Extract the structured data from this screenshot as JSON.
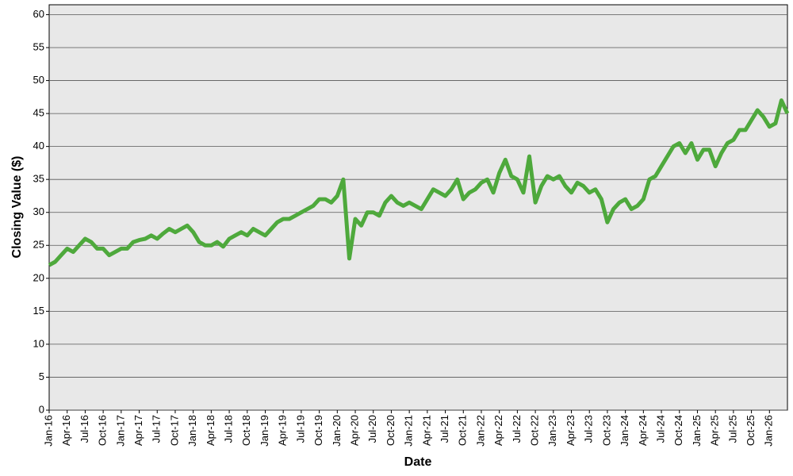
{
  "chart_data": {
    "type": "line",
    "x_label": "Date",
    "y_label": "Closing Value ($)",
    "x": [
      "Jan-16",
      "Feb-16",
      "Mar-16",
      "Apr-16",
      "May-16",
      "Jun-16",
      "Jul-16",
      "Aug-16",
      "Sep-16",
      "Oct-16",
      "Nov-16",
      "Dec-16",
      "Jan-17",
      "Feb-17",
      "Mar-17",
      "Apr-17",
      "May-17",
      "Jun-17",
      "Jul-17",
      "Aug-17",
      "Sep-17",
      "Oct-17",
      "Nov-17",
      "Dec-17",
      "Jan-18",
      "Feb-18",
      "Mar-18",
      "Apr-18",
      "May-18",
      "Jun-18",
      "Jul-18",
      "Aug-18",
      "Sep-18",
      "Oct-18",
      "Nov-18",
      "Dec-18",
      "Jan-19",
      "Feb-19",
      "Mar-19",
      "Apr-19",
      "May-19",
      "Jun-19",
      "Jul-19",
      "Aug-19",
      "Sep-19",
      "Oct-19",
      "Nov-19",
      "Dec-19",
      "Jan-20",
      "Feb-20",
      "Mar-20",
      "Apr-20",
      "May-20",
      "Jun-20",
      "Jul-20",
      "Aug-20",
      "Sep-20",
      "Oct-20",
      "Nov-20",
      "Dec-20",
      "Jan-21",
      "Feb-21",
      "Mar-21",
      "Apr-21",
      "May-21",
      "Jun-21",
      "Jul-21",
      "Aug-21",
      "Sep-21",
      "Oct-21",
      "Nov-21",
      "Dec-21",
      "Jan-22",
      "Feb-22",
      "Mar-22",
      "Apr-22",
      "May-22",
      "Jun-22",
      "Jul-22",
      "Aug-22",
      "Sep-22",
      "Oct-22",
      "Nov-22",
      "Dec-22",
      "Jan-23",
      "Feb-23",
      "Mar-23",
      "Apr-23",
      "May-23",
      "Jun-23",
      "Jul-23",
      "Aug-23",
      "Sep-23",
      "Oct-23",
      "Nov-23",
      "Dec-23",
      "Jan-24",
      "Feb-24",
      "Mar-24",
      "Apr-24",
      "May-24",
      "Jun-24",
      "Jul-24",
      "Aug-24",
      "Sep-24",
      "Oct-24",
      "Nov-24",
      "Dec-24",
      "Jan-25",
      "Feb-25",
      "Mar-25",
      "Apr-25",
      "May-25",
      "Jun-25",
      "Jul-25",
      "Aug-25",
      "Sep-25",
      "Oct-25",
      "Nov-25",
      "Dec-25",
      "Jan-26",
      "Feb-26",
      "Mar-26",
      "Apr-26"
    ],
    "series": [
      {
        "color": "#4ea93c",
        "values": [
          22,
          22.5,
          23.5,
          24.5,
          24,
          25,
          26,
          25.5,
          24.5,
          24.5,
          23.5,
          24,
          24.5,
          24.5,
          25.5,
          25.8,
          26,
          26.5,
          26,
          26.8,
          27.5,
          27,
          27.5,
          28,
          27,
          25.5,
          25,
          25,
          25.5,
          24.8,
          26,
          26.5,
          27,
          26.5,
          27.5,
          27,
          26.5,
          27.5,
          28.5,
          29,
          29,
          29.5,
          30,
          30.5,
          31,
          32,
          32,
          31.5,
          32.5,
          35,
          23,
          29,
          28,
          30,
          30,
          29.5,
          31.5,
          32.5,
          31.5,
          31,
          31.5,
          31,
          30.5,
          32,
          33.5,
          33,
          32.5,
          33.5,
          35,
          32,
          33,
          33.5,
          34.5,
          35,
          33,
          36,
          38,
          35.5,
          35,
          33,
          38.5,
          31.5,
          34,
          35.5,
          35,
          35.5,
          34,
          33,
          34.5,
          34,
          33,
          33.5,
          32,
          28.5,
          30.5,
          31.5,
          32,
          30.5,
          31,
          32,
          35,
          35.5,
          37,
          38.5,
          40,
          40.5,
          39,
          40.5,
          38,
          39.5,
          39.5,
          37,
          39,
          40.5,
          41,
          42.5,
          42.5,
          44,
          45.5,
          44.5,
          43,
          43.5,
          47,
          45
        ]
      }
    ],
    "ylim": [
      0,
      61.5
    ],
    "yticks": [
      0,
      5,
      10,
      15,
      20,
      25,
      30,
      35,
      40,
      45,
      50,
      55,
      60
    ],
    "xticks": [
      "Jan-16",
      "Apr-16",
      "Jul-16",
      "Oct-16",
      "Jan-17",
      "Apr-17",
      "Jul-17",
      "Oct-17",
      "Jan-18",
      "Apr-18",
      "Jul-18",
      "Oct-18",
      "Jan-19",
      "Apr-19",
      "Jul-19",
      "Oct-19",
      "Jan-20",
      "Apr-20",
      "Jul-20",
      "Oct-20",
      "Jan-21",
      "Apr-21",
      "Jul-21",
      "Oct-21",
      "Jan-22",
      "Apr-22",
      "Jul-22",
      "Oct-22",
      "Jan-23",
      "Apr-23",
      "Jul-23",
      "Oct-23",
      "Jan-24",
      "Apr-24",
      "Jul-24",
      "Oct-24",
      "Jan-25",
      "Apr-25",
      "Jul-25",
      "Oct-25",
      "Jan-26"
    ],
    "grid": true
  }
}
